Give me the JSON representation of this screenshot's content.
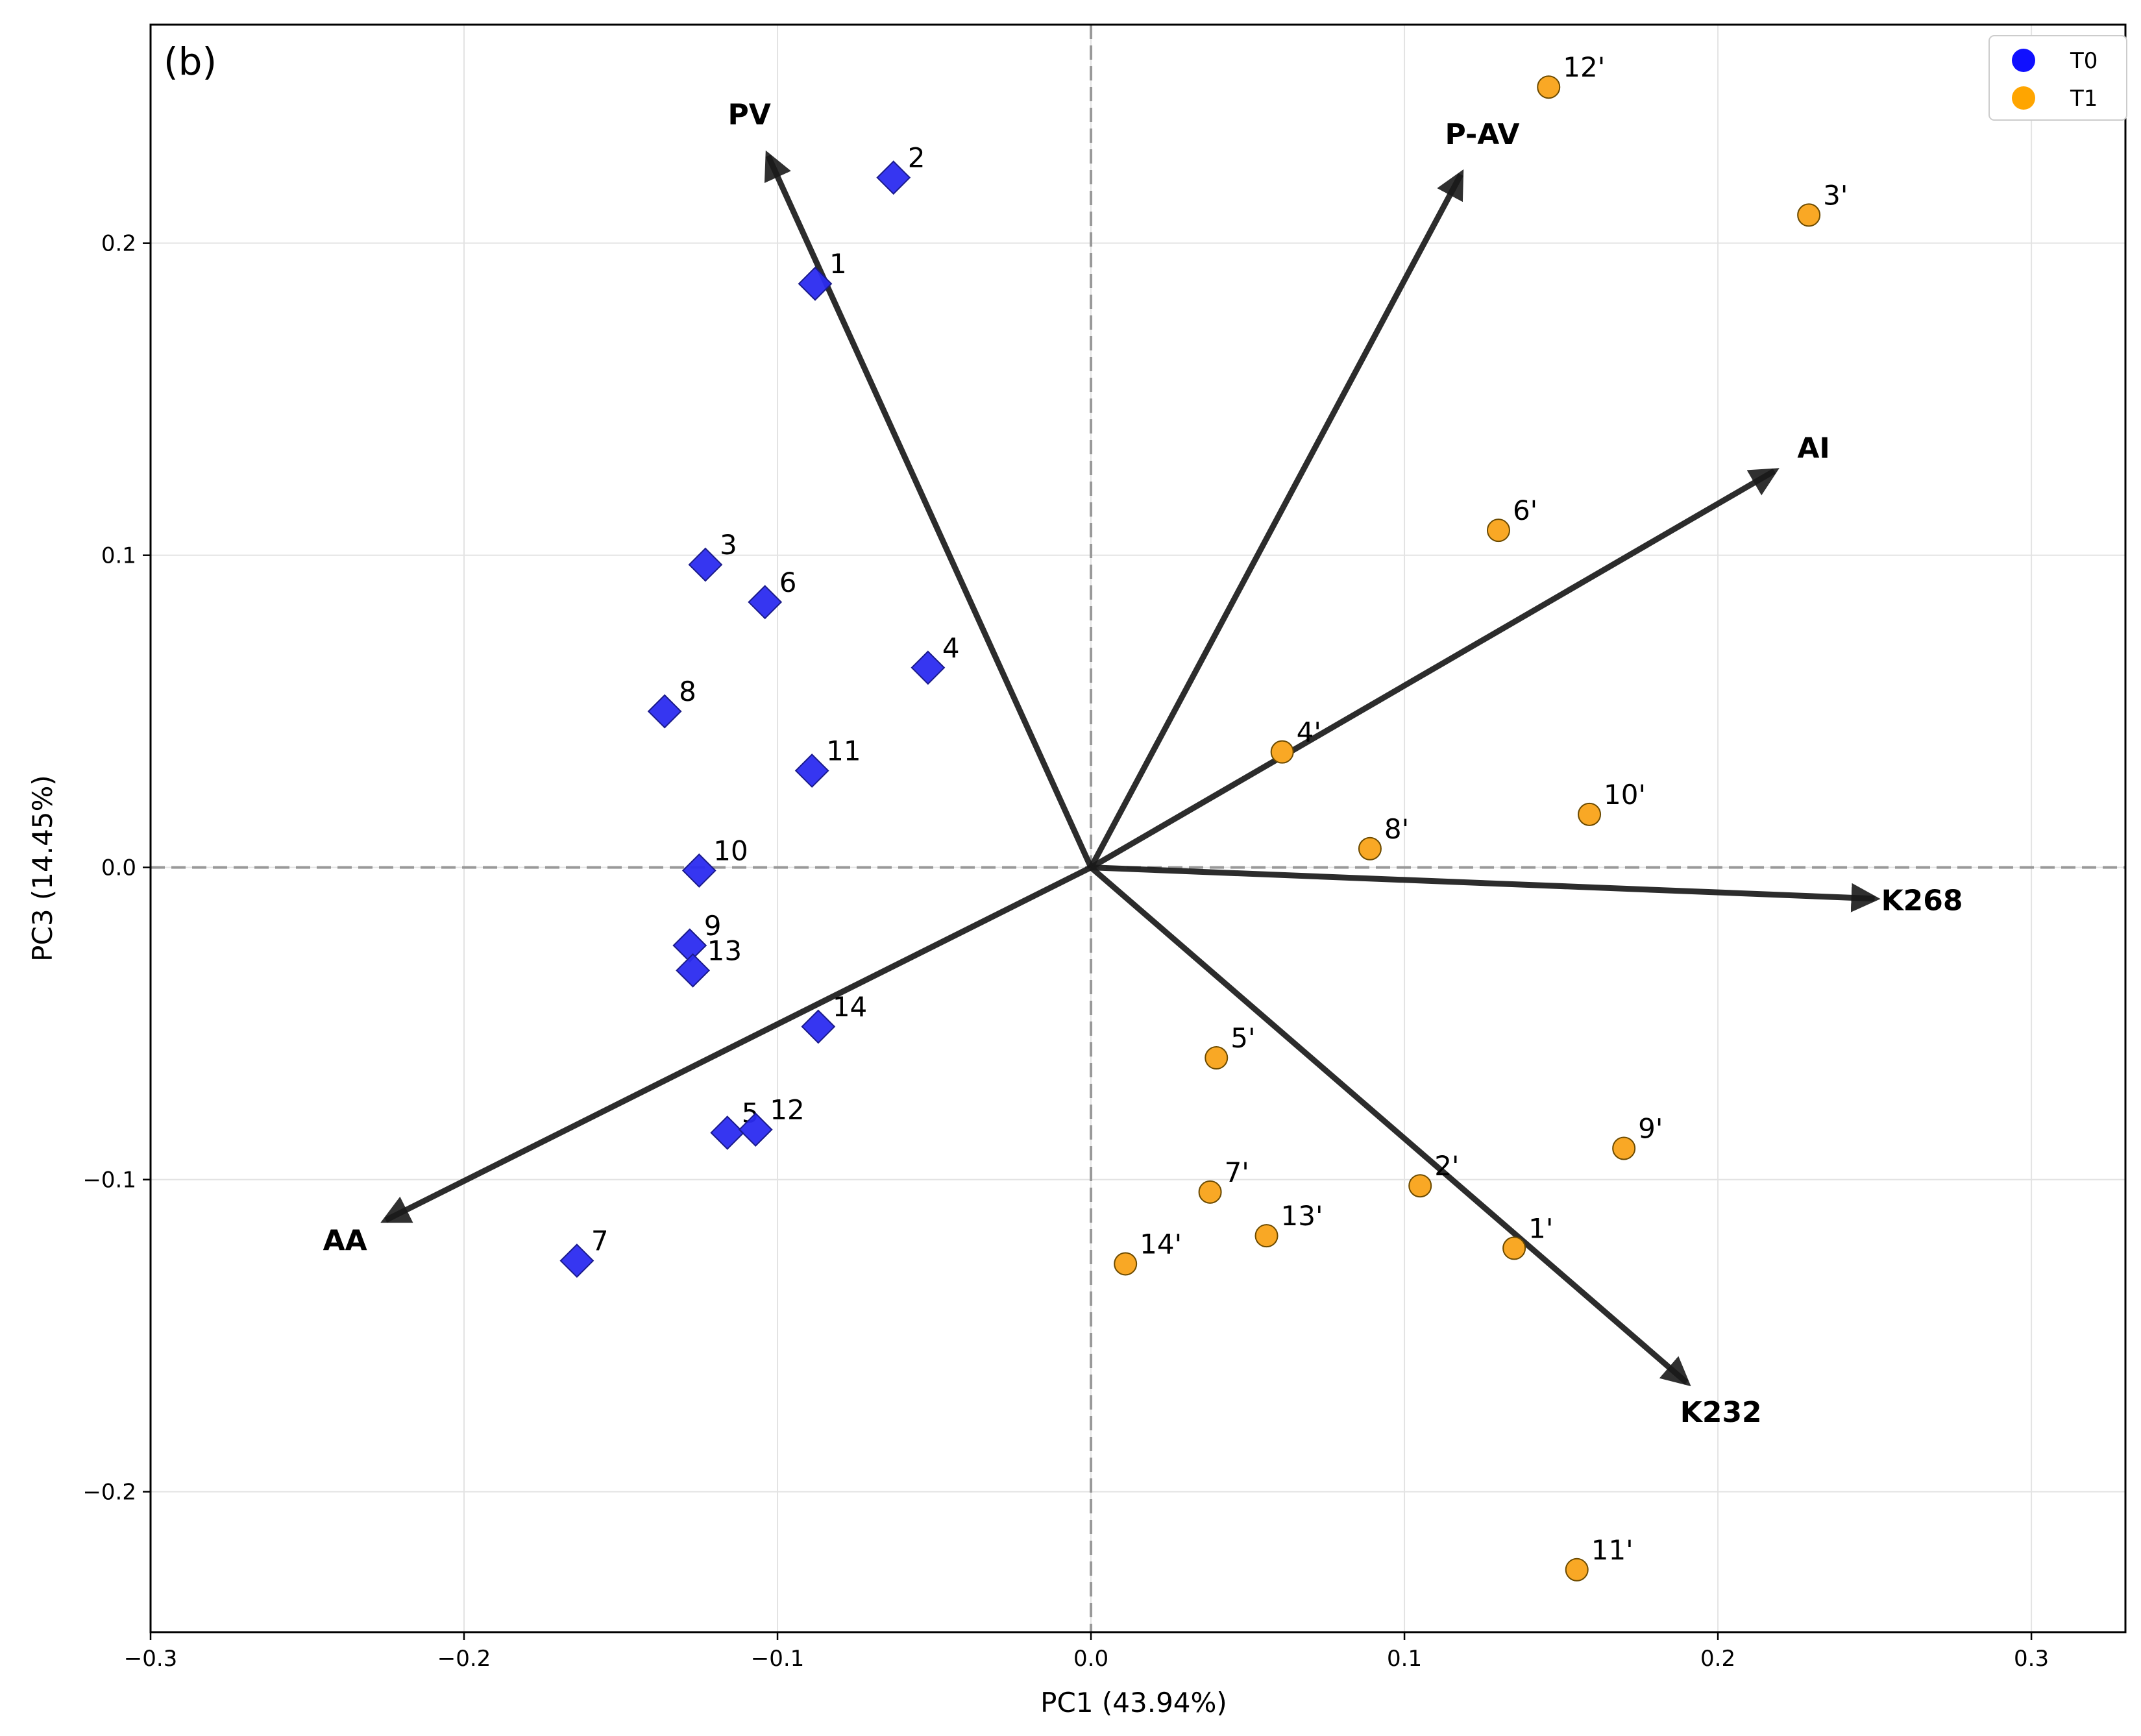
{
  "chart_data": {
    "type": "scatter",
    "panel_label": "(b)",
    "xlabel": "PC1 (43.94%)",
    "ylabel": "PC3 (14.45%)",
    "xlim": [
      -0.3,
      0.33
    ],
    "ylim": [
      -0.245,
      0.27
    ],
    "x_ticks": [
      -0.3,
      -0.2,
      -0.1,
      0.0,
      0.1,
      0.2,
      0.3
    ],
    "x_tick_labels": [
      "−0.3",
      "−0.2",
      "−0.1",
      "0.0",
      "0.1",
      "0.2",
      "0.3"
    ],
    "y_ticks": [
      -0.2,
      -0.1,
      0.0,
      0.1,
      0.2
    ],
    "y_tick_labels": [
      "−0.2",
      "−0.1",
      "0.0",
      "0.1",
      "0.2"
    ],
    "grid": true,
    "legend_position": "top-right",
    "colors": {
      "T0": "#2b2bf0",
      "T1": "#f9a825",
      "arrow": "#1a1a1a",
      "zero_line": "#999999",
      "grid": "#e3e3e3"
    },
    "series": [
      {
        "name": "T0",
        "marker": "diamond",
        "points": [
          {
            "label": "1",
            "x": -0.088,
            "y": 0.187
          },
          {
            "label": "2",
            "x": -0.063,
            "y": 0.221
          },
          {
            "label": "3",
            "x": -0.123,
            "y": 0.097
          },
          {
            "label": "4",
            "x": -0.052,
            "y": 0.064
          },
          {
            "label": "5",
            "x": -0.116,
            "y": -0.085
          },
          {
            "label": "6",
            "x": -0.104,
            "y": 0.085
          },
          {
            "label": "7",
            "x": -0.164,
            "y": -0.126
          },
          {
            "label": "8",
            "x": -0.136,
            "y": 0.05
          },
          {
            "label": "9",
            "x": -0.128,
            "y": -0.025
          },
          {
            "label": "10",
            "x": -0.125,
            "y": -0.001
          },
          {
            "label": "11",
            "x": -0.089,
            "y": 0.031
          },
          {
            "label": "12",
            "x": -0.107,
            "y": -0.084
          },
          {
            "label": "13",
            "x": -0.127,
            "y": -0.033
          },
          {
            "label": "14",
            "x": -0.087,
            "y": -0.051
          }
        ]
      },
      {
        "name": "T1",
        "marker": "circle",
        "points": [
          {
            "label": "1'",
            "x": 0.135,
            "y": -0.122
          },
          {
            "label": "2'",
            "x": 0.105,
            "y": -0.102
          },
          {
            "label": "3'",
            "x": 0.229,
            "y": 0.209
          },
          {
            "label": "4'",
            "x": 0.061,
            "y": 0.037
          },
          {
            "label": "5'",
            "x": 0.04,
            "y": -0.061
          },
          {
            "label": "6'",
            "x": 0.13,
            "y": 0.108
          },
          {
            "label": "7'",
            "x": 0.038,
            "y": -0.104
          },
          {
            "label": "8'",
            "x": 0.089,
            "y": 0.006
          },
          {
            "label": "9'",
            "x": 0.17,
            "y": -0.09
          },
          {
            "label": "10'",
            "x": 0.159,
            "y": 0.017
          },
          {
            "label": "11'",
            "x": 0.155,
            "y": -0.225
          },
          {
            "label": "12'",
            "x": 0.146,
            "y": 0.25
          },
          {
            "label": "13'",
            "x": 0.056,
            "y": -0.118
          },
          {
            "label": "14'",
            "x": 0.011,
            "y": -0.127
          }
        ]
      }
    ],
    "loadings": [
      {
        "label": "PV",
        "x": -0.103,
        "y": 0.228
      },
      {
        "label": "P-AV",
        "x": 0.118,
        "y": 0.222
      },
      {
        "label": "AI",
        "x": 0.218,
        "y": 0.127
      },
      {
        "label": "K268",
        "x": 0.25,
        "y": -0.01
      },
      {
        "label": "K232",
        "x": 0.19,
        "y": -0.165
      },
      {
        "label": "AA",
        "x": -0.225,
        "y": -0.113
      }
    ]
  }
}
